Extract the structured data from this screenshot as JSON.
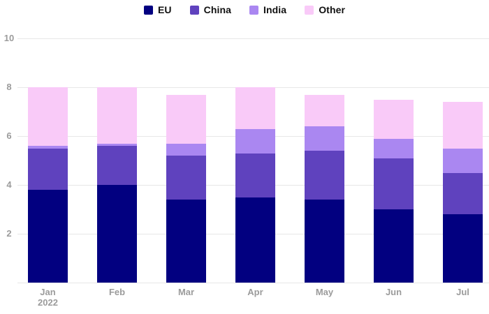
{
  "chart_data": {
    "type": "bar",
    "stacked": true,
    "title": "",
    "xlabel": "",
    "ylabel": "",
    "categories": [
      "Jan",
      "Feb",
      "Mar",
      "Apr",
      "May",
      "Jun",
      "Jul"
    ],
    "category_sublabels": [
      "2022",
      "",
      "",
      "",
      "",
      "",
      ""
    ],
    "series": [
      {
        "name": "EU",
        "color": "#020080",
        "values": [
          3.8,
          4.0,
          3.4,
          3.5,
          3.4,
          3.0,
          2.8
        ]
      },
      {
        "name": "China",
        "color": "#5f42be",
        "values": [
          1.7,
          1.6,
          1.8,
          1.8,
          2.0,
          2.1,
          1.7
        ]
      },
      {
        "name": "India",
        "color": "#aa87f1",
        "values": [
          0.1,
          0.1,
          0.5,
          1.0,
          1.0,
          0.8,
          1.0
        ]
      },
      {
        "name": "Other",
        "color": "#f9caf8",
        "values": [
          2.4,
          2.3,
          2.0,
          1.7,
          1.3,
          1.6,
          1.9
        ]
      }
    ],
    "stack_totals": [
      8.0,
      8.0,
      7.7,
      8.0,
      7.7,
      7.5,
      7.4
    ],
    "yticks": [
      2,
      4,
      6,
      8,
      10
    ],
    "ylim": [
      0,
      10
    ],
    "grid": true,
    "legend_position": "top-center",
    "colors": {
      "gridline": "#e7e7e7",
      "axis_label": "#9b9b9b",
      "legend_text": "#111111",
      "background": "#ffffff"
    }
  }
}
